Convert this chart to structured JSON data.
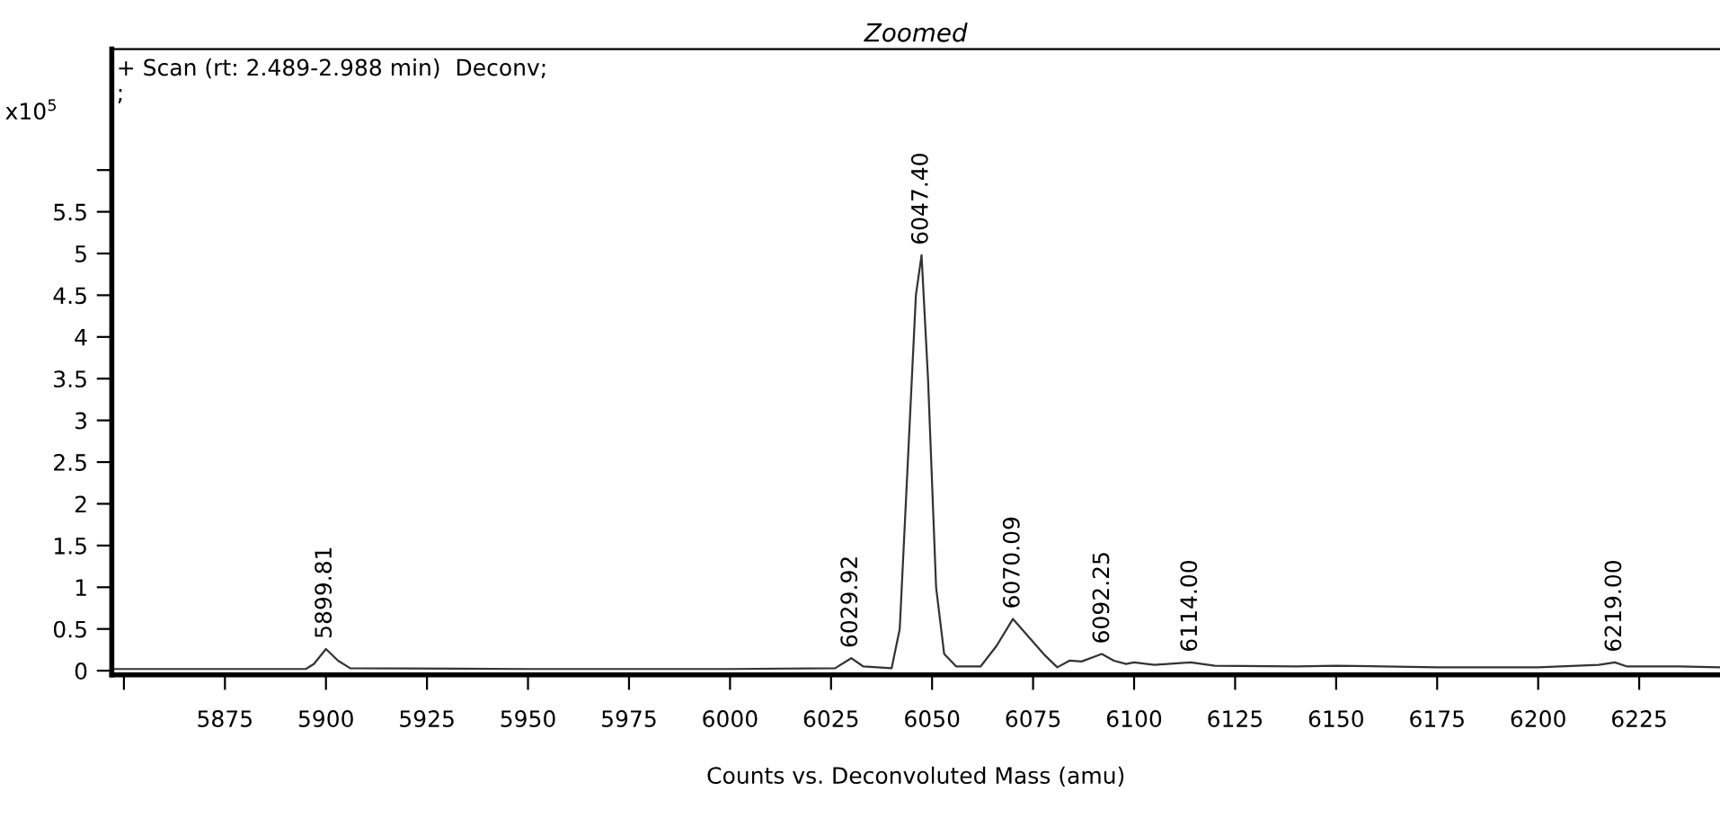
{
  "chart_data": {
    "type": "line",
    "title": "Zoomed",
    "xlabel": "Counts vs. Deconvoluted Mass (amu)",
    "ylabel": "x10$^{5}$",
    "x": [
      5847,
      5870,
      5895,
      5897,
      5900,
      5903,
      5906,
      5950,
      6000,
      6026,
      6030,
      6033,
      6040,
      6042,
      6044,
      6046,
      6047.4,
      6049,
      6051,
      6053,
      6056,
      6062,
      6066,
      6070,
      6074,
      6078,
      6081,
      6084,
      6087,
      6092,
      6095,
      6098,
      6100,
      6105,
      6114,
      6120,
      6140,
      6150,
      6175,
      6200,
      6215,
      6219,
      6222,
      6235,
      6245
    ],
    "series": [
      {
        "color": "#333333",
        "values": [
          0.02,
          0.02,
          0.02,
          0.08,
          0.26,
          0.12,
          0.03,
          0.02,
          0.02,
          0.03,
          0.15,
          0.05,
          0.03,
          0.5,
          2.5,
          4.5,
          4.98,
          3.5,
          1.0,
          0.2,
          0.05,
          0.05,
          0.3,
          0.62,
          0.4,
          0.18,
          0.04,
          0.12,
          0.11,
          0.2,
          0.12,
          0.08,
          0.1,
          0.07,
          0.1,
          0.06,
          0.05,
          0.06,
          0.04,
          0.04,
          0.07,
          0.1,
          0.05,
          0.05,
          0.04
        ]
      }
    ],
    "xlim": [
      5847,
      6245
    ],
    "ylim": [
      -0.05,
      7.45
    ],
    "xticks": [
      {
        "value": 5850,
        "label": null
      },
      5875,
      5900,
      5925,
      5950,
      5975,
      6000,
      6025,
      6050,
      6075,
      6100,
      6125,
      6150,
      6175,
      6200,
      6225
    ],
    "yticks": [
      0,
      0.5,
      1,
      1.5,
      2,
      2.5,
      3,
      3.5,
      4,
      4.5,
      5,
      5.5,
      {
        "value": 6,
        "label": null
      }
    ],
    "grid": false,
    "legend": false,
    "marker": "none",
    "line_style": "solid",
    "annotations": [
      "+ Scan (rt: 2.489-2.988 min)  Deconv;\n;",
      {
        "text": "5899.81",
        "x": 5899.81,
        "y": 0.26
      },
      {
        "text": "6029.92",
        "x": 6029.92,
        "y": 0.15
      },
      {
        "text": "6047.40",
        "x": 6047.4,
        "y": 4.98
      },
      {
        "text": "6070.09",
        "x": 6070.09,
        "y": 0.62
      },
      {
        "text": "6092.25",
        "x": 6092.25,
        "y": 0.2
      },
      {
        "text": "6114.00",
        "x": 6114.0,
        "y": 0.1
      },
      {
        "text": "6219.00",
        "x": 6219.0,
        "y": 0.1
      }
    ]
  }
}
